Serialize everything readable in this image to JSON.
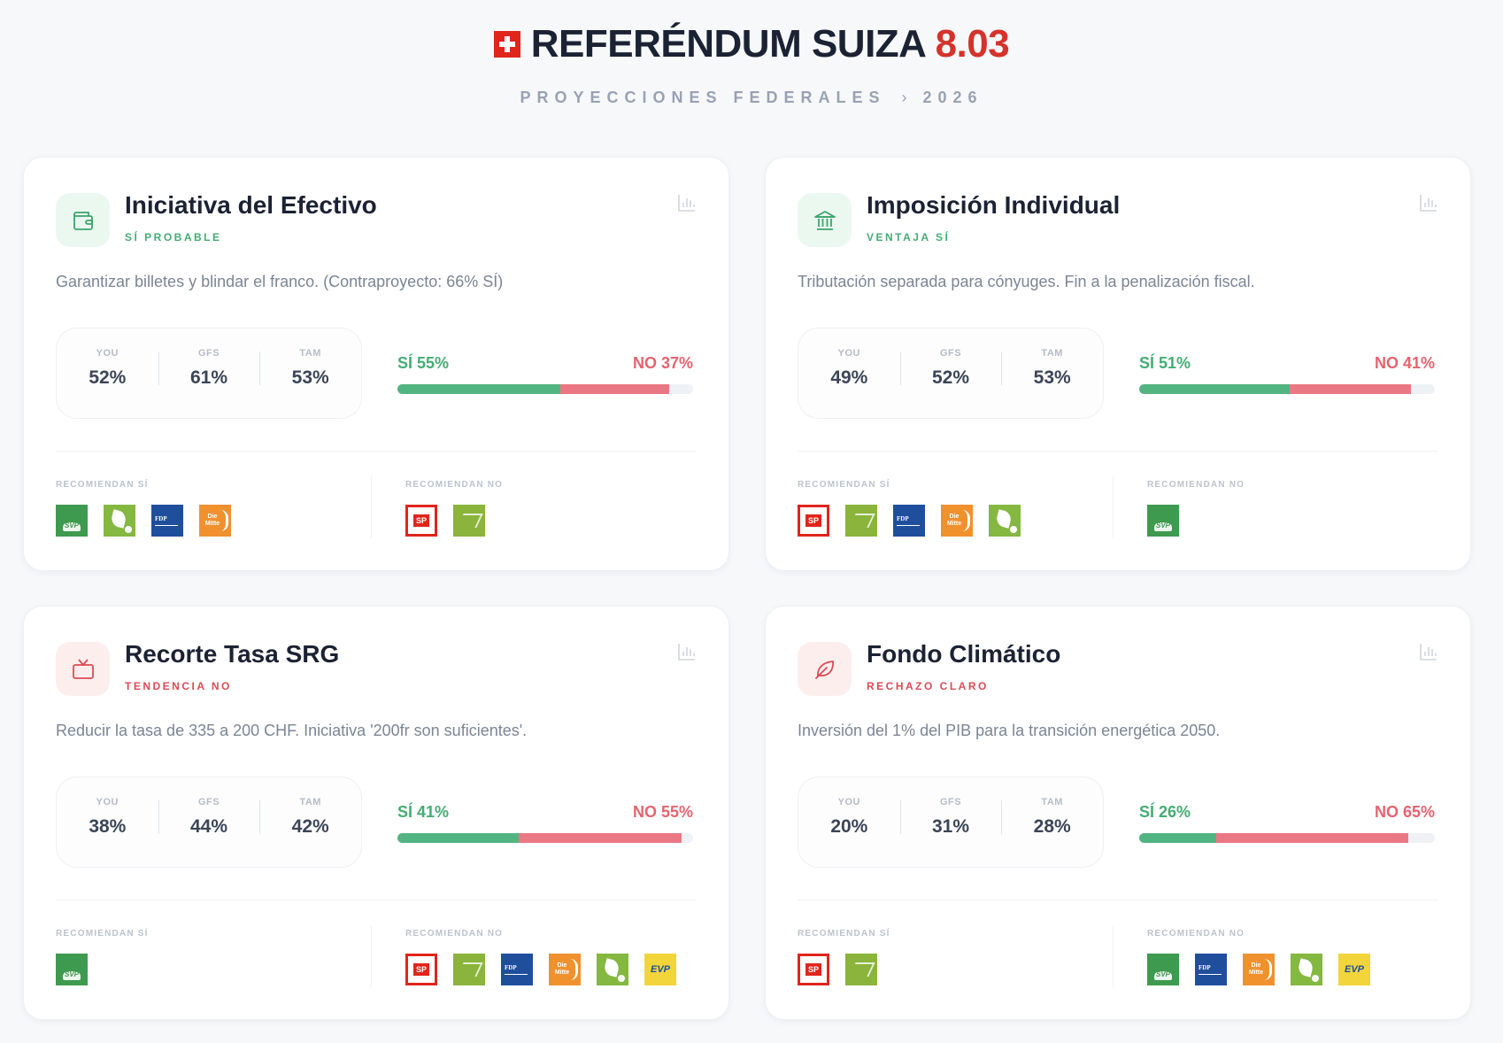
{
  "header": {
    "title_main": "REFERÉNDUM SUIZA",
    "title_accent": "8.03",
    "subtitle_left": "PROYECCIONES FEDERALES",
    "subtitle_sep": "›",
    "subtitle_right": "2026"
  },
  "labels": {
    "rec_yes": "RECOMIENDAN SÍ",
    "rec_no": "RECOMIENDAN NO"
  },
  "colors": {
    "yes": "#52b481",
    "no": "#ea7884",
    "accent": "#d4332b"
  },
  "cards": [
    {
      "title": "Iniciativa del Efectivo",
      "status": "SÍ PROBABLE",
      "tone": "green",
      "icon": "wallet-icon",
      "desc": "Garantizar billetes y blindar el franco. (Contraproyecto: 66% SÍ)",
      "polls": [
        {
          "label": "YOU",
          "value": "52%"
        },
        {
          "label": "GFS",
          "value": "61%"
        },
        {
          "label": "TAM",
          "value": "53%"
        }
      ],
      "yes_label": "SÍ 55%",
      "no_label": "NO 37%",
      "yes": 55,
      "no": 37,
      "rec_yes": [
        "svp",
        "gruene",
        "fdp",
        "mitte"
      ],
      "rec_no": [
        "sp",
        "glp"
      ]
    },
    {
      "title": "Imposición Individual",
      "status": "VENTAJA SÍ",
      "tone": "green",
      "icon": "bank-icon",
      "desc": "Tributación separada para cónyuges. Fin a la penalización fiscal.",
      "polls": [
        {
          "label": "YOU",
          "value": "49%"
        },
        {
          "label": "GFS",
          "value": "52%"
        },
        {
          "label": "TAM",
          "value": "53%"
        }
      ],
      "yes_label": "SÍ 51%",
      "no_label": "NO 41%",
      "yes": 51,
      "no": 41,
      "rec_yes": [
        "sp",
        "glp",
        "fdp",
        "mitte",
        "gruene"
      ],
      "rec_no": [
        "svp"
      ]
    },
    {
      "title": "Recorte Tasa SRG",
      "status": "TENDENCIA NO",
      "tone": "red",
      "icon": "tv-icon",
      "desc": "Reducir la tasa de 335 a 200 CHF. Iniciativa '200fr son suficientes'.",
      "polls": [
        {
          "label": "YOU",
          "value": "38%"
        },
        {
          "label": "GFS",
          "value": "44%"
        },
        {
          "label": "TAM",
          "value": "42%"
        }
      ],
      "yes_label": "SÍ 41%",
      "no_label": "NO 55%",
      "yes": 41,
      "no": 55,
      "rec_yes": [
        "svp"
      ],
      "rec_no": [
        "sp",
        "glp",
        "fdp",
        "mitte",
        "gruene",
        "evp"
      ]
    },
    {
      "title": "Fondo Climático",
      "status": "RECHAZO CLARO",
      "tone": "red",
      "icon": "leaf-icon",
      "desc": "Inversión del 1% del PIB para la transición energética 2050.",
      "polls": [
        {
          "label": "YOU",
          "value": "20%"
        },
        {
          "label": "GFS",
          "value": "31%"
        },
        {
          "label": "TAM",
          "value": "28%"
        }
      ],
      "yes_label": "SÍ 26%",
      "no_label": "NO 65%",
      "yes": 26,
      "no": 65,
      "rec_yes": [
        "sp",
        "glp"
      ],
      "rec_no": [
        "svp",
        "fdp",
        "mitte",
        "gruene",
        "evp"
      ]
    }
  ],
  "party_logos": {
    "svp": "SVP",
    "sp": "SP",
    "fdp": "FDP",
    "mitte": "Die Mitte",
    "evp": "EVP",
    "gruene": "",
    "glp": ""
  }
}
